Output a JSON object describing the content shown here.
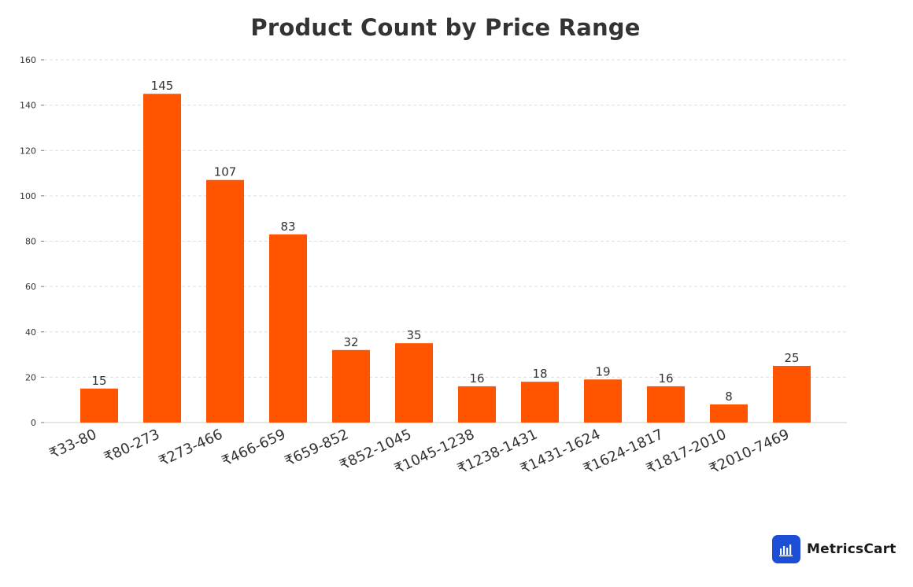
{
  "chart_data": {
    "type": "bar",
    "title": "Product Count by Price Range",
    "xlabel": "",
    "ylabel": "",
    "categories": [
      "₹33-80",
      "₹80-273",
      "₹273-466",
      "₹466-659",
      "₹659-852",
      "₹852-1045",
      "₹1045-1238",
      "₹1238-1431",
      "₹1431-1624",
      "₹1624-1817",
      "₹1817-2010",
      "₹2010-7469"
    ],
    "values": [
      15,
      145,
      107,
      83,
      32,
      35,
      16,
      18,
      19,
      16,
      8,
      25
    ],
    "ylim": [
      0,
      160
    ],
    "yticks": [
      0,
      20,
      40,
      60,
      80,
      100,
      120,
      140,
      160
    ],
    "grid": true,
    "bar_color": "#ff5500",
    "data_labels": true
  },
  "brand": {
    "name": "MetricsCart",
    "icon": "bar-chart-icon",
    "color": "#1d4ed8"
  }
}
